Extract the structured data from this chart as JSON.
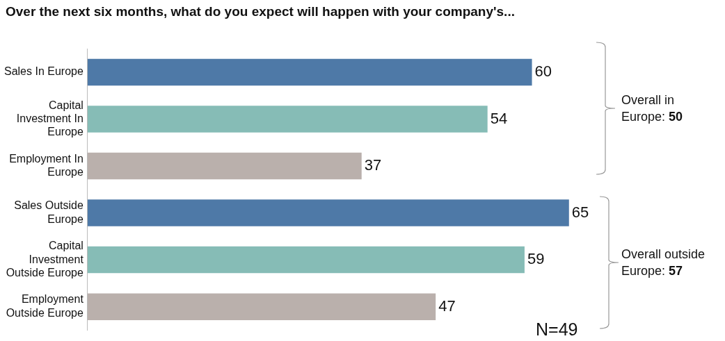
{
  "chart_data": {
    "type": "bar",
    "orientation": "horizontal",
    "title": "Over the next six months, what do you expect will happen with your company's...",
    "categories": [
      "Sales In Europe",
      "Capital Investment In Europe",
      "Employment In Europe",
      "Sales Outside Europe",
      "Capital Investment Outside Europe",
      "Employment Outside Europe"
    ],
    "values": [
      60,
      54,
      37,
      65,
      59,
      47
    ],
    "colors": [
      "#4e79a7",
      "#86bcb6",
      "#bab0ac",
      "#4e79a7",
      "#86bcb6",
      "#bab0ac"
    ],
    "tick_labels": "y",
    "legend": false,
    "data_labels": true,
    "annotations": [
      "Overall in Europe: 50",
      "Overall outside Europe: 57",
      "N=49"
    ]
  }
}
